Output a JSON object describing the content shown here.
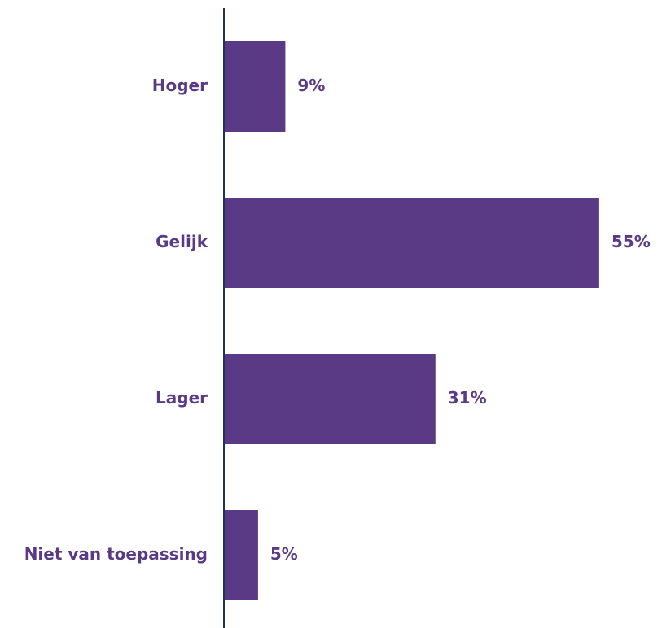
{
  "colors": {
    "bar": "#5a3a85",
    "text": "#5a3a85",
    "axis": "#1f3450"
  },
  "chart_data": {
    "type": "bar",
    "orientation": "horizontal",
    "categories": [
      "Hoger",
      "Gelijk",
      "Lager",
      "Niet van toepassing"
    ],
    "values": [
      9,
      55,
      31,
      5
    ],
    "value_labels": [
      "9%",
      "55%",
      "31%",
      "5%"
    ],
    "unit": "%",
    "xlim": [
      0,
      60
    ],
    "grid": false,
    "legend": "none",
    "title": "",
    "xlabel": "",
    "ylabel": ""
  }
}
